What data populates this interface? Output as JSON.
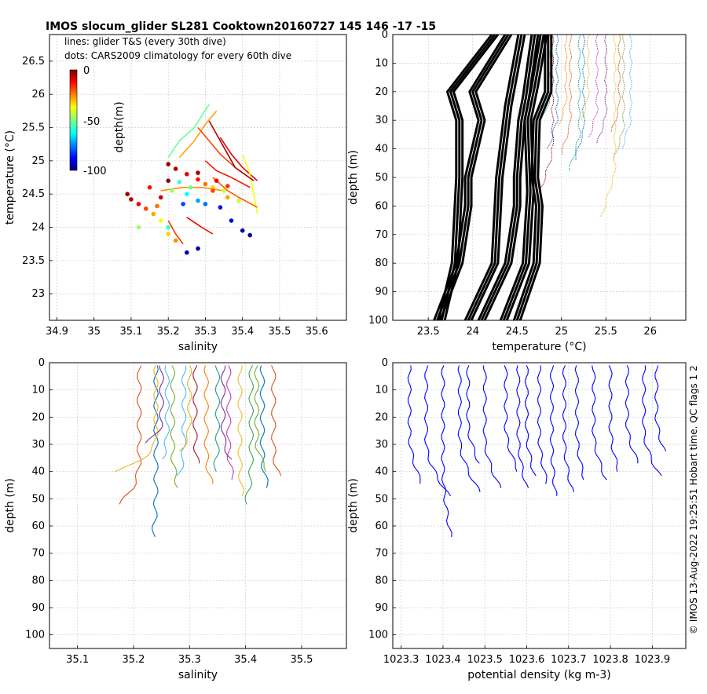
{
  "title": "IMOS slocum_glider SL281 Cooktown20160727 145  146  -17  -15",
  "side_note": "© IMOS 13-Aug-2022 19:25:51 Hobart time. QC flags 1  2",
  "colors": {
    "profile_density": "#0000ff",
    "profile_temperature": "#000000",
    "grid": "#cccccc"
  },
  "chart_data": [
    {
      "id": "ts",
      "type": "scatter",
      "xlabel": "salinity",
      "ylabel": "temperature (°C)",
      "xlim": [
        34.88,
        35.68
      ],
      "ylim": [
        22.6,
        26.9
      ],
      "x_ticks": [
        "34.9",
        "35",
        "35.1",
        "35.2",
        "35.3",
        "35.4",
        "35.5",
        "35.6"
      ],
      "y_ticks": [
        "23",
        "23.5",
        "24",
        "24.5",
        "25",
        "25.5",
        "26",
        "26.5"
      ],
      "grid": true,
      "legend_lines": [
        "lines: glider T&S (every 30th dive)",
        "dots: CARS2009 climatology for every 60th dive"
      ],
      "colorbar": {
        "label": "depth(m)",
        "ticks": [
          "0",
          "-50",
          "-100"
        ],
        "range": [
          -105,
          0
        ],
        "colormap": "jet"
      },
      "dots": [
        {
          "s": 35.2,
          "t": 24.95,
          "d": -2
        },
        {
          "s": 35.22,
          "t": 24.88,
          "d": -5
        },
        {
          "s": 35.25,
          "t": 24.8,
          "d": -10
        },
        {
          "s": 35.28,
          "t": 24.72,
          "d": -15
        },
        {
          "s": 35.3,
          "t": 24.65,
          "d": -25
        },
        {
          "s": 35.32,
          "t": 24.6,
          "d": -35
        },
        {
          "s": 35.35,
          "t": 24.55,
          "d": -45
        },
        {
          "s": 35.26,
          "t": 24.6,
          "d": -55
        },
        {
          "s": 35.23,
          "t": 24.68,
          "d": -60
        },
        {
          "s": 35.21,
          "t": 24.55,
          "d": -50
        },
        {
          "s": 35.25,
          "t": 24.5,
          "d": -65
        },
        {
          "s": 35.28,
          "t": 24.4,
          "d": -75
        },
        {
          "s": 35.3,
          "t": 24.35,
          "d": -80
        },
        {
          "s": 35.34,
          "t": 24.3,
          "d": -90
        },
        {
          "s": 35.37,
          "t": 24.1,
          "d": -95
        },
        {
          "s": 35.4,
          "t": 23.95,
          "d": -100
        },
        {
          "s": 35.42,
          "t": 23.88,
          "d": -100
        },
        {
          "s": 35.28,
          "t": 23.68,
          "d": -100
        },
        {
          "s": 35.25,
          "t": 23.62,
          "d": -100
        },
        {
          "s": 35.09,
          "t": 24.5,
          "d": -3
        },
        {
          "s": 35.1,
          "t": 24.42,
          "d": -6
        },
        {
          "s": 35.12,
          "t": 24.35,
          "d": -12
        },
        {
          "s": 35.14,
          "t": 24.28,
          "d": -20
        },
        {
          "s": 35.16,
          "t": 24.2,
          "d": -30
        },
        {
          "s": 35.18,
          "t": 24.1,
          "d": -40
        },
        {
          "s": 35.12,
          "t": 24.0,
          "d": -50
        },
        {
          "s": 35.2,
          "t": 24.0,
          "d": -60
        },
        {
          "s": 35.2,
          "t": 23.9,
          "d": -35
        },
        {
          "s": 35.22,
          "t": 23.8,
          "d": -28
        },
        {
          "s": 35.18,
          "t": 24.45,
          "d": -8
        },
        {
          "s": 35.2,
          "t": 24.7,
          "d": -2
        },
        {
          "s": 35.24,
          "t": 24.35,
          "d": -85
        },
        {
          "s": 35.32,
          "t": 24.55,
          "d": -20
        },
        {
          "s": 35.36,
          "t": 24.45,
          "d": -30
        },
        {
          "s": 35.39,
          "t": 24.4,
          "d": -45
        },
        {
          "s": 35.15,
          "t": 24.6,
          "d": -15
        },
        {
          "s": 35.17,
          "t": 24.32,
          "d": -25
        },
        {
          "s": 35.28,
          "t": 24.82,
          "d": -4
        },
        {
          "s": 35.33,
          "t": 24.7,
          "d": -12
        },
        {
          "s": 35.36,
          "t": 24.62,
          "d": -18
        }
      ],
      "lines": [
        {
          "d": -55,
          "points": [
            [
              35.2,
              25.05
            ],
            [
              35.23,
              25.3
            ],
            [
              35.27,
              25.5
            ],
            [
              35.31,
              25.85
            ]
          ]
        },
        {
          "d": -30,
          "points": [
            [
              35.23,
              25.05
            ],
            [
              35.27,
              25.3
            ],
            [
              35.3,
              25.55
            ],
            [
              35.33,
              25.75
            ]
          ]
        },
        {
          "d": -20,
          "points": [
            [
              35.28,
              25.5
            ],
            [
              35.31,
              25.3
            ],
            [
              35.34,
              25.1
            ],
            [
              35.38,
              24.9
            ]
          ]
        },
        {
          "d": -15,
          "points": [
            [
              35.3,
              25.0
            ],
            [
              35.33,
              24.85
            ],
            [
              35.37,
              24.75
            ],
            [
              35.42,
              24.6
            ]
          ]
        },
        {
          "d": -10,
          "points": [
            [
              35.34,
              25.35
            ],
            [
              35.37,
              25.1
            ],
            [
              35.4,
              24.9
            ],
            [
              35.44,
              24.7
            ]
          ]
        },
        {
          "d": -40,
          "points": [
            [
              35.4,
              25.1
            ],
            [
              35.42,
              24.8
            ],
            [
              35.43,
              24.5
            ],
            [
              35.44,
              24.2
            ]
          ]
        },
        {
          "d": -22,
          "points": [
            [
              35.32,
              24.75
            ],
            [
              35.36,
              24.55
            ],
            [
              35.39,
              24.45
            ],
            [
              35.44,
              24.3
            ]
          ]
        },
        {
          "d": -28,
          "points": [
            [
              35.18,
              24.55
            ],
            [
              35.24,
              24.6
            ],
            [
              35.29,
              24.6
            ],
            [
              35.35,
              24.55
            ]
          ]
        },
        {
          "d": -18,
          "points": [
            [
              35.2,
              24.1
            ],
            [
              35.22,
              23.9
            ],
            [
              35.24,
              23.75
            ]
          ]
        },
        {
          "d": -12,
          "points": [
            [
              35.25,
              24.15
            ],
            [
              35.29,
              24.0
            ],
            [
              35.32,
              23.9
            ]
          ]
        },
        {
          "d": -5,
          "points": [
            [
              35.31,
              25.6
            ],
            [
              35.35,
              25.2
            ],
            [
              35.38,
              24.9
            ],
            [
              35.43,
              24.7
            ]
          ]
        }
      ]
    },
    {
      "id": "temp_profile",
      "type": "line",
      "xlabel": "temperature (°C)",
      "ylabel": "depth (m)",
      "xlim": [
        23.1,
        26.4
      ],
      "ylim": [
        100,
        0
      ],
      "x_ticks": [
        "23.5",
        "24",
        "24.5",
        "25",
        "25.5",
        "26"
      ],
      "y_ticks": [
        "0",
        "10",
        "20",
        "30",
        "40",
        "50",
        "60",
        "70",
        "80",
        "90",
        "100"
      ],
      "grid": true,
      "climatology_profiles": [
        {
          "points": [
            [
              24.85,
              0
            ],
            [
              24.85,
              20
            ],
            [
              24.72,
              30
            ],
            [
              24.7,
              50
            ],
            [
              24.75,
              60
            ],
            [
              24.72,
              80
            ],
            [
              24.5,
              100
            ]
          ]
        },
        {
          "points": [
            [
              24.7,
              0
            ],
            [
              24.6,
              22
            ],
            [
              24.55,
              30
            ],
            [
              24.5,
              50
            ],
            [
              24.5,
              60
            ],
            [
              24.4,
              80
            ],
            [
              24.1,
              100
            ]
          ]
        },
        {
          "points": [
            [
              24.55,
              0
            ],
            [
              24.4,
              25
            ],
            [
              24.3,
              50
            ],
            [
              24.25,
              80
            ],
            [
              23.95,
              100
            ]
          ]
        },
        {
          "points": [
            [
              24.4,
              0
            ],
            [
              24.0,
              20
            ],
            [
              24.1,
              30
            ],
            [
              23.95,
              50
            ],
            [
              23.95,
              60
            ],
            [
              23.85,
              80
            ],
            [
              23.6,
              100
            ]
          ]
        },
        {
          "points": [
            [
              24.25,
              0
            ],
            [
              23.75,
              20
            ],
            [
              23.85,
              30
            ],
            [
              23.85,
              50
            ],
            [
              23.8,
              80
            ],
            [
              23.65,
              100
            ]
          ]
        },
        {
          "points": [
            [
              24.8,
              0
            ],
            [
              24.7,
              18
            ],
            [
              24.62,
              30
            ],
            [
              24.65,
              55
            ],
            [
              24.6,
              80
            ],
            [
              24.35,
              100
            ]
          ]
        }
      ],
      "glider_profiles": [
        {
          "x": 24.95,
          "max_depth": 40
        },
        {
          "x": 25.1,
          "max_depth": 42
        },
        {
          "x": 25.3,
          "max_depth": 30
        },
        {
          "x": 25.5,
          "max_depth": 38
        },
        {
          "x": 25.7,
          "max_depth": 44
        },
        {
          "x": 25.78,
          "max_depth": 40
        },
        {
          "x": 24.9,
          "max_depth": 55
        },
        {
          "x": 25.05,
          "max_depth": 32
        },
        {
          "x": 25.2,
          "max_depth": 48
        },
        {
          "x": 25.4,
          "max_depth": 36
        },
        {
          "x": 25.6,
          "max_depth": 65
        },
        {
          "x": 24.88,
          "max_depth": 28
        },
        {
          "x": 25.25,
          "max_depth": 45
        },
        {
          "x": 25.65,
          "max_depth": 34
        }
      ]
    },
    {
      "id": "sal_profile",
      "type": "line",
      "xlabel": "salinity",
      "ylabel": "depth (m)",
      "xlim": [
        35.05,
        35.58
      ],
      "ylim": [
        105,
        0
      ],
      "x_ticks": [
        "35.1",
        "35.2",
        "35.3",
        "35.4",
        "35.5"
      ],
      "y_ticks": [
        "0",
        "10",
        "20",
        "30",
        "40",
        "50",
        "60",
        "70",
        "80",
        "90",
        "100"
      ],
      "grid": true,
      "profiles": [
        {
          "x": 35.24,
          "max_depth": 65,
          "hook": -0.005
        },
        {
          "x": 35.21,
          "max_depth": 53,
          "hook": -0.04
        },
        {
          "x": 35.24,
          "max_depth": 40,
          "hook": -0.07
        },
        {
          "x": 35.25,
          "max_depth": 30,
          "hook": -0.03
        },
        {
          "x": 35.27,
          "max_depth": 46,
          "hook": 0.01
        },
        {
          "x": 35.29,
          "max_depth": 42,
          "hook": -0.01
        },
        {
          "x": 35.31,
          "max_depth": 38,
          "hook": 0.005
        },
        {
          "x": 35.33,
          "max_depth": 45,
          "hook": 0.01
        },
        {
          "x": 35.35,
          "max_depth": 40,
          "hook": -0.005
        },
        {
          "x": 35.37,
          "max_depth": 44,
          "hook": 0.01
        },
        {
          "x": 35.39,
          "max_depth": 50,
          "hook": 0.005
        },
        {
          "x": 35.41,
          "max_depth": 52,
          "hook": -0.01
        },
        {
          "x": 35.43,
          "max_depth": 46,
          "hook": 0.01
        },
        {
          "x": 35.45,
          "max_depth": 42,
          "hook": 0.01
        },
        {
          "x": 35.3,
          "max_depth": 33,
          "hook": -0.02
        },
        {
          "x": 35.36,
          "max_depth": 36,
          "hook": 0.015
        },
        {
          "x": 35.42,
          "max_depth": 40,
          "hook": 0.02
        },
        {
          "x": 35.26,
          "max_depth": 36,
          "hook": -0.01
        }
      ]
    },
    {
      "id": "density_profile",
      "type": "line",
      "xlabel": "potential density (kg m-3)",
      "ylabel": "depth (m)",
      "xlim": [
        1023.28,
        1023.98
      ],
      "ylim": [
        105,
        0
      ],
      "x_ticks": [
        "1023.3",
        "1023.4",
        "1023.5",
        "1023.6",
        "1023.7",
        "1023.8",
        "1023.9"
      ],
      "y_ticks": [
        "0",
        "10",
        "20",
        "30",
        "40",
        "50",
        "60",
        "70",
        "80",
        "90",
        "100"
      ],
      "grid": true,
      "profiles": [
        {
          "x": 1023.32,
          "max_depth": 45,
          "hook": 0.03
        },
        {
          "x": 1023.36,
          "max_depth": 50,
          "hook": 0.06
        },
        {
          "x": 1023.4,
          "max_depth": 65,
          "hook": 0.02
        },
        {
          "x": 1023.44,
          "max_depth": 48,
          "hook": 0.05
        },
        {
          "x": 1023.5,
          "max_depth": 47,
          "hook": 0.04
        },
        {
          "x": 1023.55,
          "max_depth": 40,
          "hook": 0.03
        },
        {
          "x": 1023.6,
          "max_depth": 42,
          "hook": 0.02
        },
        {
          "x": 1023.63,
          "max_depth": 45,
          "hook": 0.02
        },
        {
          "x": 1023.66,
          "max_depth": 50,
          "hook": 0.01
        },
        {
          "x": 1023.69,
          "max_depth": 48,
          "hook": 0.02
        },
        {
          "x": 1023.72,
          "max_depth": 44,
          "hook": 0.02
        },
        {
          "x": 1023.76,
          "max_depth": 43,
          "hook": 0.03
        },
        {
          "x": 1023.8,
          "max_depth": 40,
          "hook": 0.02
        },
        {
          "x": 1023.84,
          "max_depth": 38,
          "hook": 0.03
        },
        {
          "x": 1023.88,
          "max_depth": 42,
          "hook": 0.04
        },
        {
          "x": 1023.91,
          "max_depth": 33,
          "hook": 0.02
        },
        {
          "x": 1023.46,
          "max_depth": 38,
          "hook": 0.03
        },
        {
          "x": 1023.58,
          "max_depth": 46,
          "hook": 0.02
        }
      ]
    }
  ]
}
